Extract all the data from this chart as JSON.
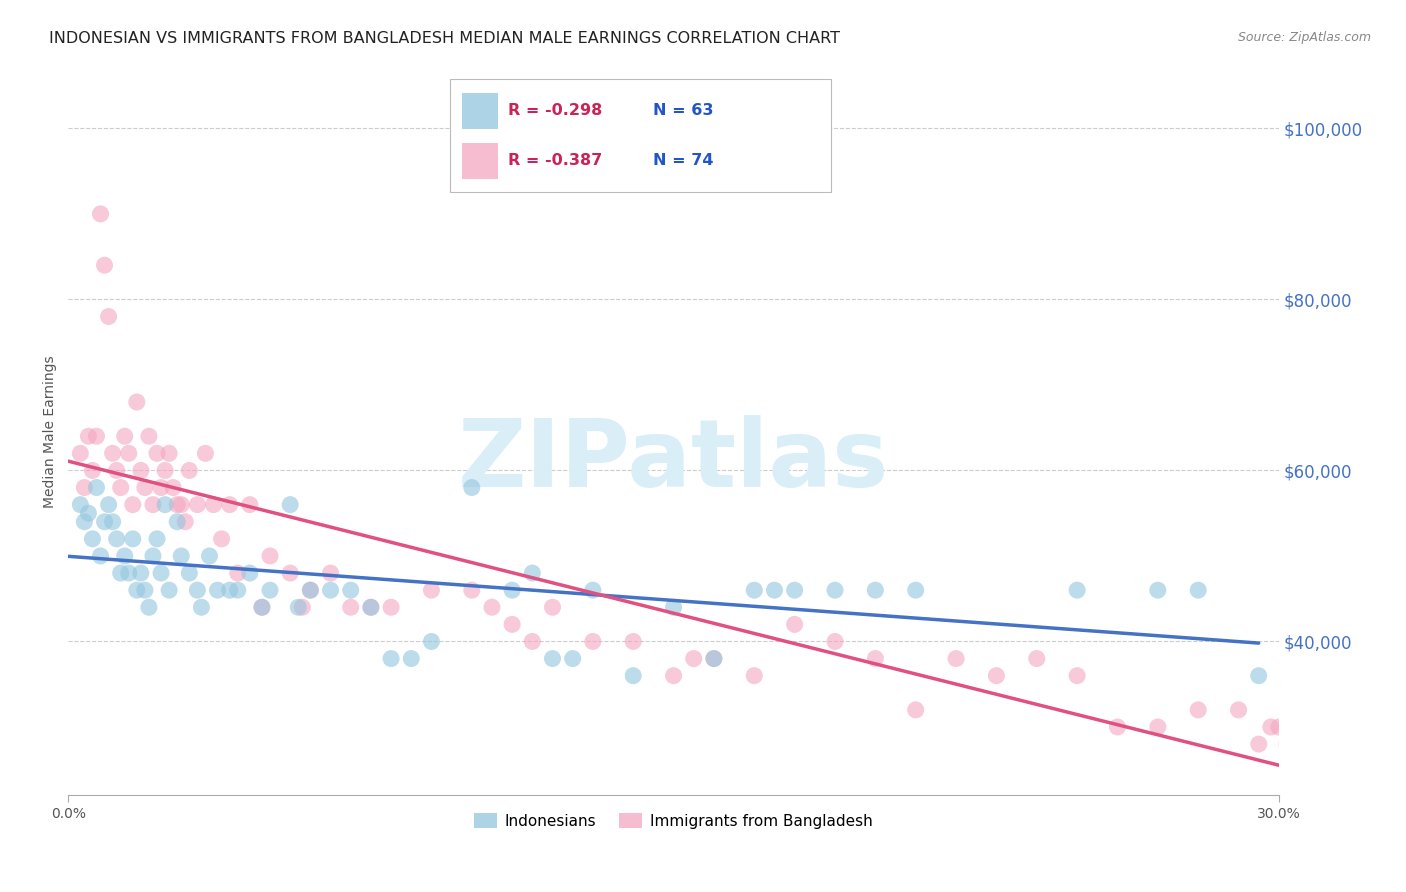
{
  "title": "INDONESIAN VS IMMIGRANTS FROM BANGLADESH MEDIAN MALE EARNINGS CORRELATION CHART",
  "source": "Source: ZipAtlas.com",
  "ylabel": "Median Male Earnings",
  "right_ytick_labels": [
    "$100,000",
    "$80,000",
    "$60,000",
    "$40,000"
  ],
  "right_ytick_values": [
    100000,
    80000,
    60000,
    40000
  ],
  "ylim": [
    22000,
    107000
  ],
  "xlim": [
    0.0,
    0.3
  ],
  "legend_labels_bottom": [
    "Indonesians",
    "Immigrants from Bangladesh"
  ],
  "indonesian_color": "#92c5de",
  "bangladesh_color": "#f4a6c0",
  "background_color": "#ffffff",
  "grid_color": "#cccccc",
  "watermark_text": "ZIPatlas",
  "watermark_color": "#daeef8",
  "title_fontsize": 11.5,
  "source_fontsize": 9,
  "axis_label_fontsize": 10,
  "tick_fontsize": 10,
  "legend_r1": "R = -0.298",
  "legend_n1": "N = 63",
  "legend_r2": "R = -0.387",
  "legend_n2": "N = 74",
  "line_color_indo": "#4472c4",
  "line_color_bang": "#e05080",
  "indonesian_scatter_x": [
    0.003,
    0.004,
    0.005,
    0.006,
    0.007,
    0.008,
    0.009,
    0.01,
    0.011,
    0.012,
    0.013,
    0.014,
    0.015,
    0.016,
    0.017,
    0.018,
    0.019,
    0.02,
    0.021,
    0.022,
    0.023,
    0.024,
    0.025,
    0.027,
    0.028,
    0.03,
    0.032,
    0.033,
    0.035,
    0.037,
    0.04,
    0.042,
    0.045,
    0.048,
    0.05,
    0.055,
    0.057,
    0.06,
    0.065,
    0.07,
    0.075,
    0.08,
    0.085,
    0.09,
    0.1,
    0.11,
    0.115,
    0.12,
    0.125,
    0.13,
    0.14,
    0.15,
    0.16,
    0.17,
    0.175,
    0.18,
    0.19,
    0.2,
    0.21,
    0.25,
    0.27,
    0.28,
    0.295
  ],
  "indonesian_scatter_y": [
    56000,
    54000,
    55000,
    52000,
    58000,
    50000,
    54000,
    56000,
    54000,
    52000,
    48000,
    50000,
    48000,
    52000,
    46000,
    48000,
    46000,
    44000,
    50000,
    52000,
    48000,
    56000,
    46000,
    54000,
    50000,
    48000,
    46000,
    44000,
    50000,
    46000,
    46000,
    46000,
    48000,
    44000,
    46000,
    56000,
    44000,
    46000,
    46000,
    46000,
    44000,
    38000,
    38000,
    40000,
    58000,
    46000,
    48000,
    38000,
    38000,
    46000,
    36000,
    44000,
    38000,
    46000,
    46000,
    46000,
    46000,
    46000,
    46000,
    46000,
    46000,
    46000,
    36000
  ],
  "bangladesh_scatter_x": [
    0.003,
    0.004,
    0.005,
    0.006,
    0.007,
    0.008,
    0.009,
    0.01,
    0.011,
    0.012,
    0.013,
    0.014,
    0.015,
    0.016,
    0.017,
    0.018,
    0.019,
    0.02,
    0.021,
    0.022,
    0.023,
    0.024,
    0.025,
    0.026,
    0.027,
    0.028,
    0.029,
    0.03,
    0.032,
    0.034,
    0.036,
    0.038,
    0.04,
    0.042,
    0.045,
    0.048,
    0.05,
    0.055,
    0.058,
    0.06,
    0.065,
    0.07,
    0.075,
    0.08,
    0.09,
    0.1,
    0.105,
    0.11,
    0.115,
    0.12,
    0.13,
    0.14,
    0.15,
    0.155,
    0.16,
    0.17,
    0.18,
    0.19,
    0.2,
    0.21,
    0.22,
    0.23,
    0.24,
    0.25,
    0.26,
    0.27,
    0.28,
    0.29,
    0.295,
    0.298,
    0.3,
    0.302,
    0.304,
    0.306
  ],
  "bangladesh_scatter_y": [
    62000,
    58000,
    64000,
    60000,
    64000,
    90000,
    84000,
    78000,
    62000,
    60000,
    58000,
    64000,
    62000,
    56000,
    68000,
    60000,
    58000,
    64000,
    56000,
    62000,
    58000,
    60000,
    62000,
    58000,
    56000,
    56000,
    54000,
    60000,
    56000,
    62000,
    56000,
    52000,
    56000,
    48000,
    56000,
    44000,
    50000,
    48000,
    44000,
    46000,
    48000,
    44000,
    44000,
    44000,
    46000,
    46000,
    44000,
    42000,
    40000,
    44000,
    40000,
    40000,
    36000,
    38000,
    38000,
    36000,
    42000,
    40000,
    38000,
    32000,
    38000,
    36000,
    38000,
    36000,
    30000,
    30000,
    32000,
    32000,
    28000,
    30000,
    30000,
    28000,
    28000,
    26000
  ]
}
